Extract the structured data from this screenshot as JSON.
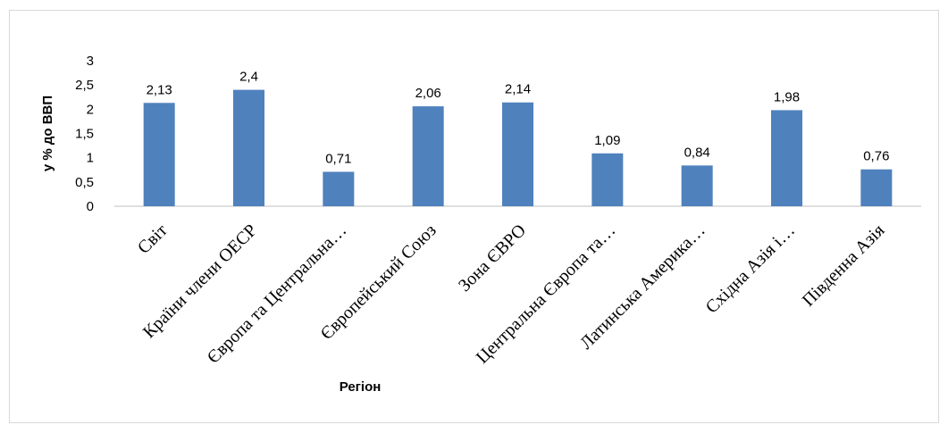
{
  "chart_data": {
    "type": "bar",
    "title": "",
    "xlabel": "Регіон",
    "ylabel": "у % до ВВП",
    "ylim": [
      0,
      3
    ],
    "yticks": [
      "0",
      "0,5",
      "1",
      "1,5",
      "2",
      "2,5",
      "3"
    ],
    "grid": false,
    "categories": [
      "Світ",
      "Країни члени ОЕСР",
      "Європа та Центральна…",
      "Європейський Союз",
      "Зона ЄВРО",
      "Центральна Європа та…",
      "Латинська Америка…",
      "Східна Азія і…",
      "Південна Азія"
    ],
    "values": [
      2.13,
      2.4,
      0.71,
      2.06,
      2.14,
      1.09,
      0.84,
      1.98,
      0.76
    ],
    "data_labels": [
      "2,13",
      "2,4",
      "0,71",
      "2,06",
      "2,14",
      "1,09",
      "0,84",
      "1,98",
      "0,76"
    ],
    "colors": {
      "bar": "#4f81bd",
      "axis": "#bfbfbf"
    }
  }
}
